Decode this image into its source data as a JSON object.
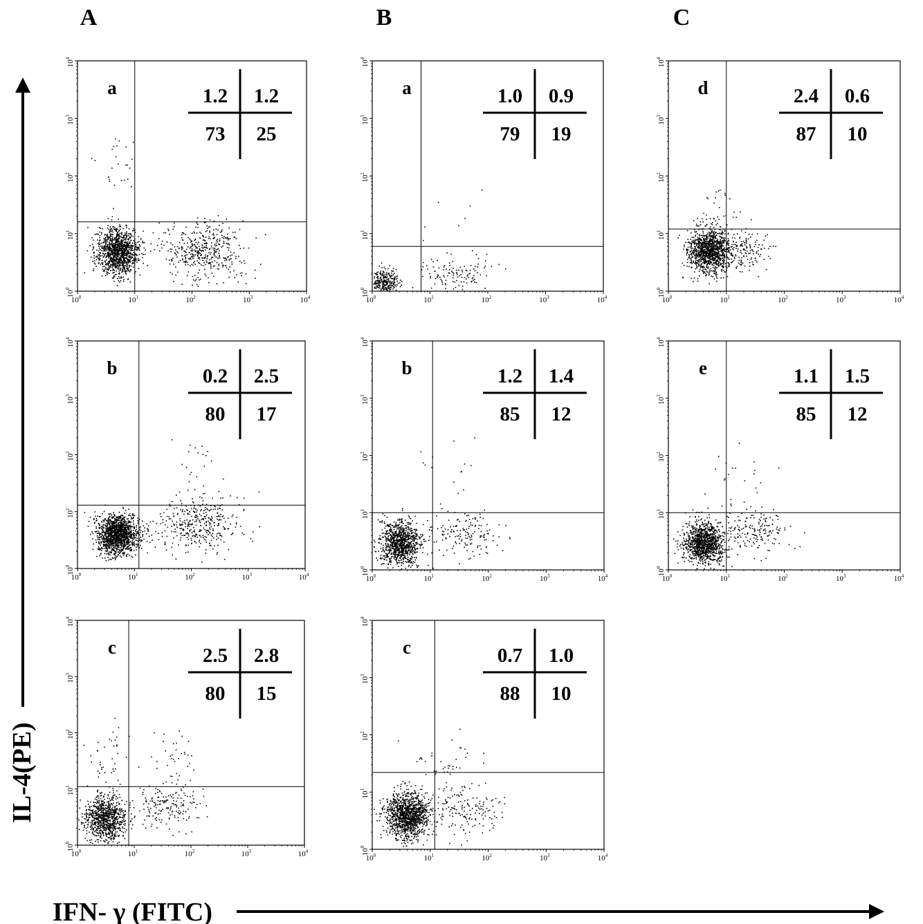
{
  "figure": {
    "column_labels": [
      "A",
      "B",
      "C"
    ],
    "y_axis_title": "IL-4(PE)",
    "x_axis_title": "IFN- γ (FITC)"
  },
  "chart_data": [
    {
      "type": "scatter",
      "column": "A",
      "panel": "a",
      "quadrants": {
        "upper_left": "1.2",
        "upper_right": "1.2",
        "lower_left": "73",
        "lower_right": "25"
      },
      "gate": {
        "x": 10,
        "y": 16
      },
      "xlim": [
        1,
        10000
      ],
      "ylim": [
        1,
        10000
      ],
      "xscale": "log",
      "yscale": "log",
      "xticks": [
        "10^0",
        "10^1",
        "10^2",
        "10^3",
        "10^4"
      ],
      "yticks": [
        "10^0",
        "10^1",
        "10^2",
        "10^3",
        "10^4"
      ],
      "populations": [
        {
          "x": 5,
          "y": 5,
          "sx": 0.18,
          "sy": 0.2,
          "n": 1200
        },
        {
          "x": 150,
          "y": 5,
          "sx": 0.35,
          "sy": 0.25,
          "n": 450
        },
        {
          "x": 5,
          "y": 200,
          "sx": 0.2,
          "sy": 0.3,
          "n": 25
        }
      ]
    },
    {
      "type": "scatter",
      "column": "A",
      "panel": "b",
      "quadrants": {
        "upper_left": "0.2",
        "upper_right": "2.5",
        "lower_left": "80",
        "lower_right": "17"
      },
      "gate": {
        "x": 12,
        "y": 13
      },
      "xlim": [
        1,
        10000
      ],
      "ylim": [
        1,
        10000
      ],
      "xscale": "log",
      "yscale": "log",
      "xticks": [
        "10^0",
        "10^1",
        "10^2",
        "10^3",
        "10^4"
      ],
      "yticks": [
        "10^0",
        "10^1",
        "10^2",
        "10^3",
        "10^4"
      ],
      "populations": [
        {
          "x": 5,
          "y": 4,
          "sx": 0.18,
          "sy": 0.17,
          "n": 1500
        },
        {
          "x": 120,
          "y": 6,
          "sx": 0.35,
          "sy": 0.25,
          "n": 380
        },
        {
          "x": 150,
          "y": 60,
          "sx": 0.25,
          "sy": 0.25,
          "n": 20
        }
      ]
    },
    {
      "type": "scatter",
      "column": "A",
      "panel": "c",
      "quadrants": {
        "upper_left": "2.5",
        "upper_right": "2.8",
        "lower_left": "80",
        "lower_right": "15"
      },
      "gate": {
        "x": 8,
        "y": 11
      },
      "xlim": [
        1,
        10000
      ],
      "ylim": [
        1,
        10000
      ],
      "xscale": "log",
      "yscale": "log",
      "xticks": [
        "10^0",
        "10^1",
        "10^2",
        "10^3",
        "10^4"
      ],
      "yticks": [
        "10^0",
        "10^1",
        "10^2",
        "10^3",
        "10^4"
      ],
      "populations": [
        {
          "x": 3,
          "y": 3,
          "sx": 0.18,
          "sy": 0.2,
          "n": 900
        },
        {
          "x": 40,
          "y": 5,
          "sx": 0.3,
          "sy": 0.2,
          "n": 180
        },
        {
          "x": 4,
          "y": 40,
          "sx": 0.2,
          "sy": 0.3,
          "n": 40
        },
        {
          "x": 50,
          "y": 40,
          "sx": 0.25,
          "sy": 0.25,
          "n": 35
        }
      ]
    },
    {
      "type": "scatter",
      "column": "B",
      "panel": "a",
      "quadrants": {
        "upper_left": "1.0",
        "upper_right": "0.9",
        "lower_left": "79",
        "lower_right": "19"
      },
      "gate": {
        "x": 7,
        "y": 6
      },
      "xlim": [
        1,
        10000
      ],
      "ylim": [
        1,
        10000
      ],
      "xscale": "log",
      "yscale": "log",
      "xticks": [
        "10^0",
        "10^1",
        "10^2",
        "10^3",
        "10^4"
      ],
      "yticks": [
        "10^0",
        "10^1",
        "10^2",
        "10^3",
        "10^4"
      ],
      "populations": [
        {
          "x": 1.6,
          "y": 1.5,
          "sx": 0.12,
          "sy": 0.12,
          "n": 300
        },
        {
          "x": 30,
          "y": 2,
          "sx": 0.3,
          "sy": 0.15,
          "n": 120
        },
        {
          "x": 20,
          "y": 20,
          "sx": 0.4,
          "sy": 0.3,
          "n": 8
        }
      ]
    },
    {
      "type": "scatter",
      "column": "B",
      "panel": "b",
      "quadrants": {
        "upper_left": "1.2",
        "upper_right": "1.4",
        "lower_left": "85",
        "lower_right": "12"
      },
      "gate": {
        "x": 11,
        "y": 10
      },
      "xlim": [
        1,
        10000
      ],
      "ylim": [
        1,
        10000
      ],
      "xscale": "log",
      "yscale": "log",
      "xticks": [
        "10^0",
        "10^1",
        "10^2",
        "10^3",
        "10^4"
      ],
      "yticks": [
        "10^0",
        "10^1",
        "10^2",
        "10^3",
        "10^4"
      ],
      "populations": [
        {
          "x": 3,
          "y": 3,
          "sx": 0.17,
          "sy": 0.2,
          "n": 1000
        },
        {
          "x": 40,
          "y": 4,
          "sx": 0.3,
          "sy": 0.2,
          "n": 150
        },
        {
          "x": 20,
          "y": 80,
          "sx": 0.4,
          "sy": 0.4,
          "n": 15
        }
      ]
    },
    {
      "type": "scatter",
      "column": "B",
      "panel": "c",
      "quadrants": {
        "upper_left": "0.7",
        "upper_right": "1.0",
        "lower_left": "88",
        "lower_right": "10"
      },
      "gate": {
        "x": 12,
        "y": 22
      },
      "xlim": [
        1,
        10000
      ],
      "ylim": [
        1,
        10000
      ],
      "xscale": "log",
      "yscale": "log",
      "xticks": [
        "10^0",
        "10^1",
        "10^2",
        "10^3",
        "10^4"
      ],
      "yticks": [
        "10^0",
        "10^1",
        "10^2",
        "10^3",
        "10^4"
      ],
      "populations": [
        {
          "x": 4,
          "y": 4,
          "sx": 0.18,
          "sy": 0.2,
          "n": 1300
        },
        {
          "x": 40,
          "y": 5,
          "sx": 0.3,
          "sy": 0.22,
          "n": 160
        },
        {
          "x": 20,
          "y": 30,
          "sx": 0.3,
          "sy": 0.25,
          "n": 40
        }
      ]
    },
    {
      "type": "scatter",
      "column": "C",
      "panel": "d",
      "quadrants": {
        "upper_left": "2.4",
        "upper_right": "0.6",
        "lower_left": "87",
        "lower_right": "10"
      },
      "gate": {
        "x": 10,
        "y": 12
      },
      "xlim": [
        1,
        10000
      ],
      "ylim": [
        1,
        10000
      ],
      "xscale": "log",
      "yscale": "log",
      "xticks": [
        "10^0",
        "10^1",
        "10^2",
        "10^3",
        "10^4"
      ],
      "yticks": [
        "10^0",
        "10^1",
        "10^2",
        "10^3",
        "10^4"
      ],
      "populations": [
        {
          "x": 5,
          "y": 5,
          "sx": 0.18,
          "sy": 0.18,
          "n": 1200
        },
        {
          "x": 20,
          "y": 5,
          "sx": 0.22,
          "sy": 0.2,
          "n": 140
        },
        {
          "x": 6,
          "y": 20,
          "sx": 0.2,
          "sy": 0.25,
          "n": 40
        }
      ]
    },
    {
      "type": "scatter",
      "column": "C",
      "panel": "e",
      "quadrants": {
        "upper_left": "1.1",
        "upper_right": "1.5",
        "lower_left": "85",
        "lower_right": "12"
      },
      "gate": {
        "x": 10,
        "y": 10
      },
      "xlim": [
        1,
        10000
      ],
      "ylim": [
        1,
        10000
      ],
      "xscale": "log",
      "yscale": "log",
      "xticks": [
        "10^0",
        "10^1",
        "10^2",
        "10^3",
        "10^4"
      ],
      "yticks": [
        "10^0",
        "10^1",
        "10^2",
        "10^3",
        "10^4"
      ],
      "populations": [
        {
          "x": 4,
          "y": 3,
          "sx": 0.17,
          "sy": 0.18,
          "n": 1100
        },
        {
          "x": 30,
          "y": 5,
          "sx": 0.3,
          "sy": 0.2,
          "n": 180
        },
        {
          "x": 20,
          "y": 50,
          "sx": 0.4,
          "sy": 0.3,
          "n": 20
        }
      ]
    }
  ]
}
